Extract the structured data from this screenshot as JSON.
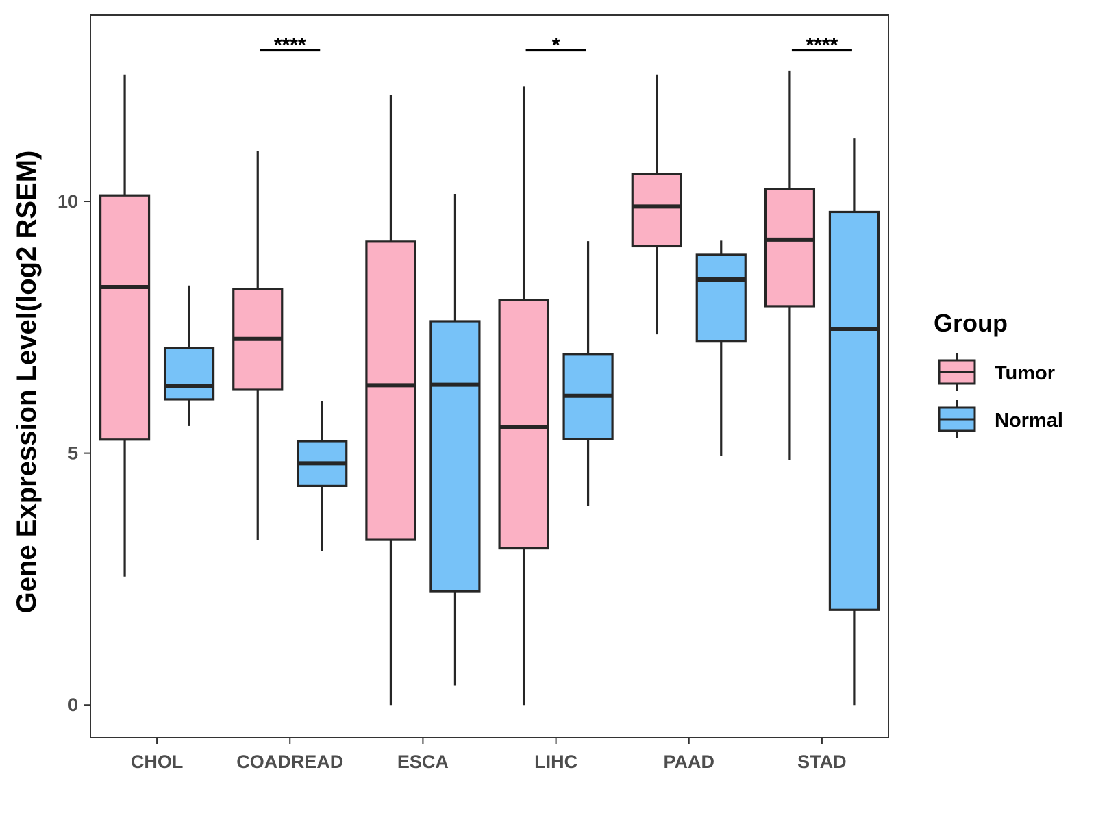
{
  "chart_data": {
    "type": "box",
    "title": "",
    "xlabel": "",
    "ylabel": "Gene Expression Level(log2 RSEM)",
    "ylim": [
      -0.65,
      13.7
    ],
    "yticks": [
      0,
      5,
      10
    ],
    "grid": false,
    "legend": {
      "title": "Group",
      "position": "right"
    },
    "colors": {
      "Tumor": "#fbb1c4",
      "Normal": "#77c2f8",
      "stroke": "#262626"
    },
    "categories": [
      "CHOL",
      "COADREAD",
      "ESCA",
      "LIHC",
      "PAAD",
      "STAD"
    ],
    "series": [
      {
        "name": "Tumor",
        "boxes": [
          {
            "min": 2.55,
            "q1": 5.27,
            "median": 8.3,
            "q3": 10.12,
            "max": 12.52
          },
          {
            "min": 3.28,
            "q1": 6.26,
            "median": 7.27,
            "q3": 8.26,
            "max": 11.0
          },
          {
            "min": 0.0,
            "q1": 3.28,
            "median": 6.35,
            "q3": 9.2,
            "max": 12.12
          },
          {
            "min": 0.0,
            "q1": 3.11,
            "median": 5.52,
            "q3": 8.04,
            "max": 12.28
          },
          {
            "min": 7.36,
            "q1": 9.11,
            "median": 9.9,
            "q3": 10.54,
            "max": 12.52
          },
          {
            "min": 4.87,
            "q1": 7.92,
            "median": 9.24,
            "q3": 10.25,
            "max": 12.6
          }
        ]
      },
      {
        "name": "Normal",
        "boxes": [
          {
            "min": 5.54,
            "q1": 6.07,
            "median": 6.33,
            "q3": 7.09,
            "max": 8.33
          },
          {
            "min": 3.06,
            "q1": 4.35,
            "median": 4.8,
            "q3": 5.24,
            "max": 6.03
          },
          {
            "min": 0.39,
            "q1": 2.26,
            "median": 6.36,
            "q3": 7.62,
            "max": 10.15
          },
          {
            "min": 3.96,
            "q1": 5.28,
            "median": 6.14,
            "q3": 6.97,
            "max": 9.21
          },
          {
            "min": 4.95,
            "q1": 7.23,
            "median": 8.45,
            "q3": 8.94,
            "max": 9.22
          },
          {
            "min": 0.0,
            "q1": 1.89,
            "median": 7.47,
            "q3": 9.79,
            "max": 11.25
          }
        ]
      }
    ],
    "significance": [
      {
        "category": "COADREAD",
        "label": "****",
        "y": 13.0
      },
      {
        "category": "LIHC",
        "label": "*",
        "y": 13.0
      },
      {
        "category": "STAD",
        "label": "****",
        "y": 13.0
      }
    ]
  }
}
